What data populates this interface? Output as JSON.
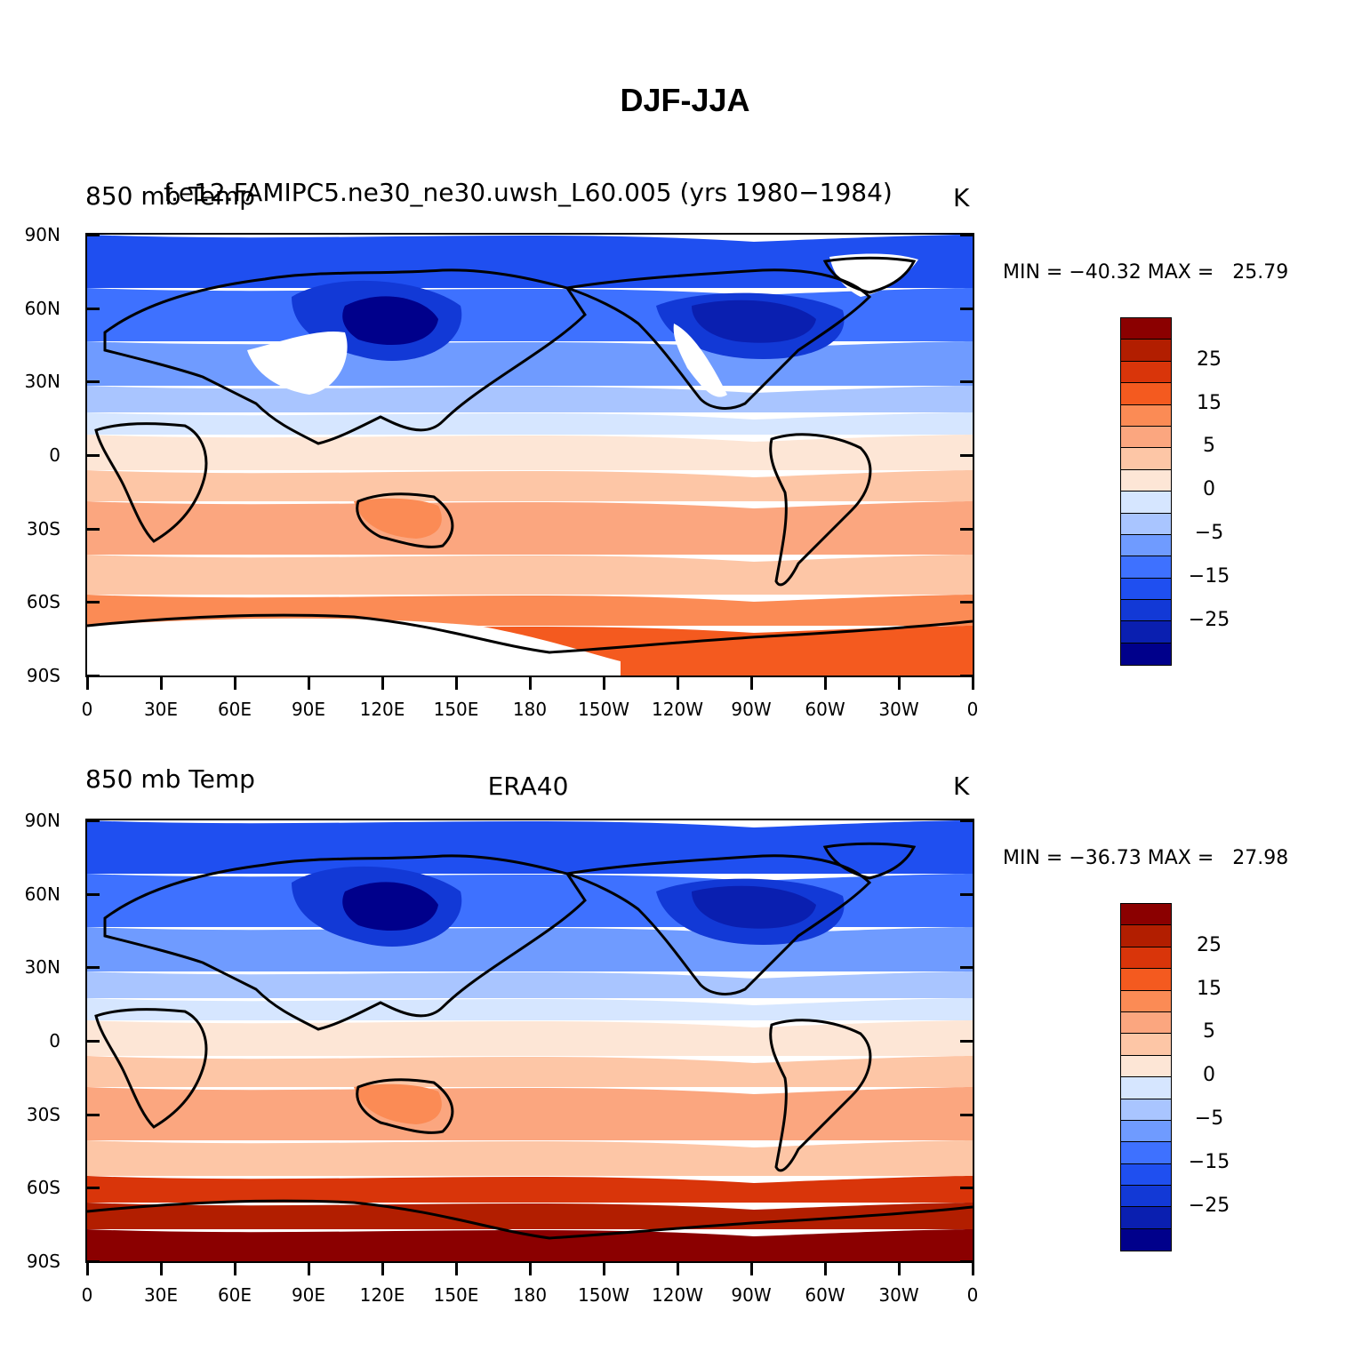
{
  "figure_title": "DJF-JJA",
  "colors": {
    "palette": [
      "#00008b",
      "#0a1fb0",
      "#1239d6",
      "#1f4ff0",
      "#3e71ff",
      "#6f9bff",
      "#a9c5ff",
      "#d6e6ff",
      "#fde6d6",
      "#fdc6a6",
      "#fba67f",
      "#fb8b55",
      "#f45a1f",
      "#d9350a",
      "#b21e00",
      "#8b0000"
    ],
    "land_outline": "#000000",
    "missing": "#ffffff"
  },
  "colorbar": {
    "labels": [
      "25",
      "15",
      "5",
      "0",
      "−5",
      "−15",
      "−25"
    ]
  },
  "axes": {
    "y_ticks": [
      "90N",
      "60N",
      "30N",
      "0",
      "30S",
      "60S",
      "90S"
    ],
    "x_ticks": [
      "0",
      "30E",
      "60E",
      "90E",
      "120E",
      "150E",
      "180",
      "150W",
      "120W",
      "90W",
      "60W",
      "30W",
      "0"
    ]
  },
  "panels": [
    {
      "left_title": "850 mb Temp",
      "center_title": "f.e12.FAMIPC5.ne30_ne30.uwsh_L60.005 (yrs 1980−1984)",
      "units": "K",
      "min_max": "MIN = −40.32 MAX =   25.79"
    },
    {
      "left_title": "850 mb Temp",
      "center_title": "ERA40",
      "units": "K",
      "min_max": "MIN = −36.73 MAX =   27.98"
    }
  ]
}
